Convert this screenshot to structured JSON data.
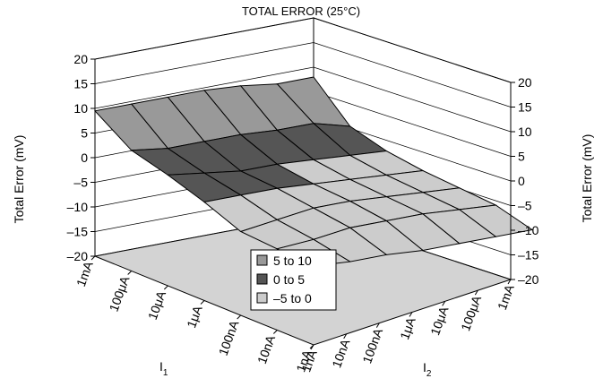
{
  "chart_data": {
    "type": "surface3d",
    "title": "TOTAL ERROR (25°C)",
    "zlabel_left": "Total Error (mV)",
    "zlabel_right": "Total Error (mV)",
    "zlim": [
      -20,
      20
    ],
    "z_ticks": [
      "20",
      "15",
      "10",
      "5",
      "0",
      "–5",
      "–10",
      "–15",
      "–20"
    ],
    "z_tick_values": [
      20,
      15,
      10,
      5,
      0,
      -5,
      -10,
      -15,
      -20
    ],
    "x_axis": {
      "label": "I",
      "subscript": "1",
      "ticks": [
        "1mA",
        "100μA",
        "10μA",
        "1μA",
        "100nA",
        "10nA",
        "1nA"
      ]
    },
    "y_axis": {
      "label": "I",
      "subscript": "2",
      "ticks": [
        "1nA",
        "10nA",
        "100nA",
        "1μA",
        "10μA",
        "100μA",
        "1mA"
      ]
    },
    "legend": [
      {
        "label": "5 to 10",
        "color": "#999999"
      },
      {
        "label": "0 to 5",
        "color": "#555555"
      },
      {
        "label": "–5 to 0",
        "color": "#cccccc"
      }
    ],
    "floor_color": "#d3d3d3",
    "z_grid": [
      [
        8,
        8,
        9,
        9.5,
        9.5,
        9.5,
        9.5
      ],
      [
        1,
        3,
        3,
        3.5,
        3.5,
        3.5,
        4.5
      ],
      [
        -1,
        -0.5,
        0,
        0.5,
        0.5,
        1.5,
        2.5
      ],
      [
        -2,
        -1.5,
        -1,
        -0.5,
        0,
        0,
        0
      ],
      [
        -2.5,
        -2,
        -1.5,
        -1,
        -1,
        -2,
        -3
      ],
      [
        -3,
        -2.5,
        -2,
        -2,
        -2,
        -3,
        -3.5
      ],
      [
        -5,
        -5,
        -5,
        -5,
        -4.5,
        -4.5,
        -4
      ]
    ]
  }
}
